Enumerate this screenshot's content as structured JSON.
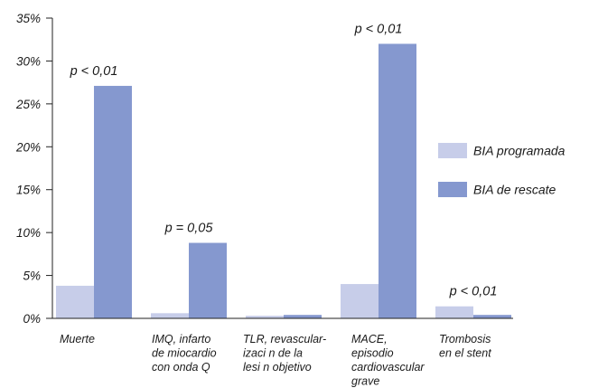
{
  "chart_data": {
    "type": "bar",
    "categories": [
      [
        "Muerte"
      ],
      [
        "IMQ, infarto",
        "de miocardio",
        "con onda Q"
      ],
      [
        "TLR, revascular-",
        "izaci  n de la",
        "lesi  n objetivo"
      ],
      [
        "MACE,",
        "episodio",
        "cardiovascular",
        "grave"
      ],
      [
        "Trombosis",
        "en el stent"
      ]
    ],
    "series": [
      {
        "name": "BIA programada",
        "values": [
          3.8,
          0.6,
          0.3,
          4.0,
          1.4
        ]
      },
      {
        "name": "BIA de rescate",
        "values": [
          27.1,
          8.8,
          0.4,
          32.0,
          0.4
        ]
      }
    ],
    "annotations": [
      "p < 0,01",
      "p = 0,05",
      "",
      "p < 0,01",
      "p < 0,01"
    ],
    "y_ticks": [
      "0%",
      "5%",
      "10%",
      "15%",
      "20%",
      "25%",
      "30%",
      "35%"
    ],
    "ylim": [
      0,
      35
    ],
    "title": "",
    "xlabel": "",
    "ylabel": "",
    "colors": {
      "BIA programada": "#c7cde9",
      "BIA de rescate": "#8598cf"
    },
    "grid": false,
    "legend_position": "right"
  }
}
